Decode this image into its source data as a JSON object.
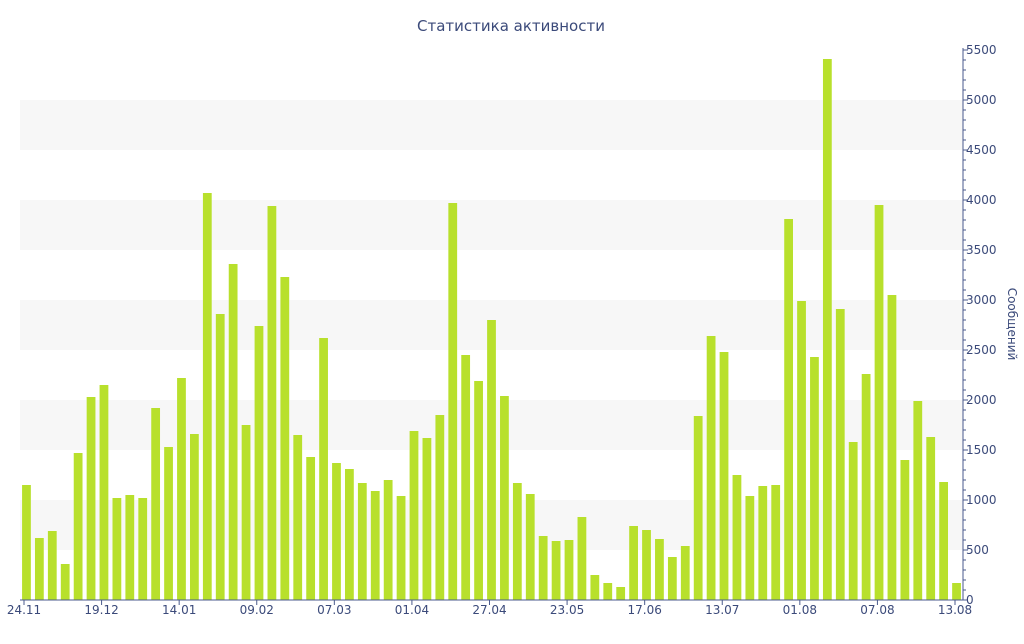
{
  "chart_data": {
    "type": "bar",
    "title": "Статистика активности",
    "ylabel": "Сообщений",
    "xlabel": "",
    "ylim": [
      0,
      5500
    ],
    "yticks": [
      0,
      500,
      1000,
      1500,
      2000,
      2500,
      3000,
      3500,
      4000,
      4500,
      5000,
      5500
    ],
    "xtick_labels": [
      "24.11",
      "19.12",
      "14.01",
      "09.02",
      "07.03",
      "01.04",
      "27.04",
      "23.05",
      "17.06",
      "13.07",
      "01.08",
      "07.08",
      "13.08"
    ],
    "values": [
      1150,
      620,
      690,
      360,
      1470,
      2030,
      2150,
      1020,
      1050,
      1020,
      1920,
      1530,
      2220,
      1660,
      4070,
      2860,
      3360,
      1750,
      2740,
      3940,
      3230,
      1650,
      1430,
      2620,
      1370,
      1310,
      1170,
      1090,
      1200,
      1040,
      1690,
      1620,
      1850,
      3970,
      2450,
      2190,
      2800,
      2040,
      1170,
      1060,
      640,
      590,
      600,
      830,
      250,
      170,
      130,
      740,
      700,
      610,
      430,
      540,
      1840,
      2640,
      2480,
      1250,
      1040,
      1140,
      1150,
      3810,
      2990,
      2430,
      5410,
      2910,
      1580,
      2260,
      3950,
      3050,
      1400,
      1990,
      1630,
      1180,
      170
    ],
    "bar_color": "#b8e02c",
    "band_color": "#f7f7f7",
    "axis_color": "#4a5a8c",
    "grid": "alternating bands",
    "legend": "none"
  }
}
